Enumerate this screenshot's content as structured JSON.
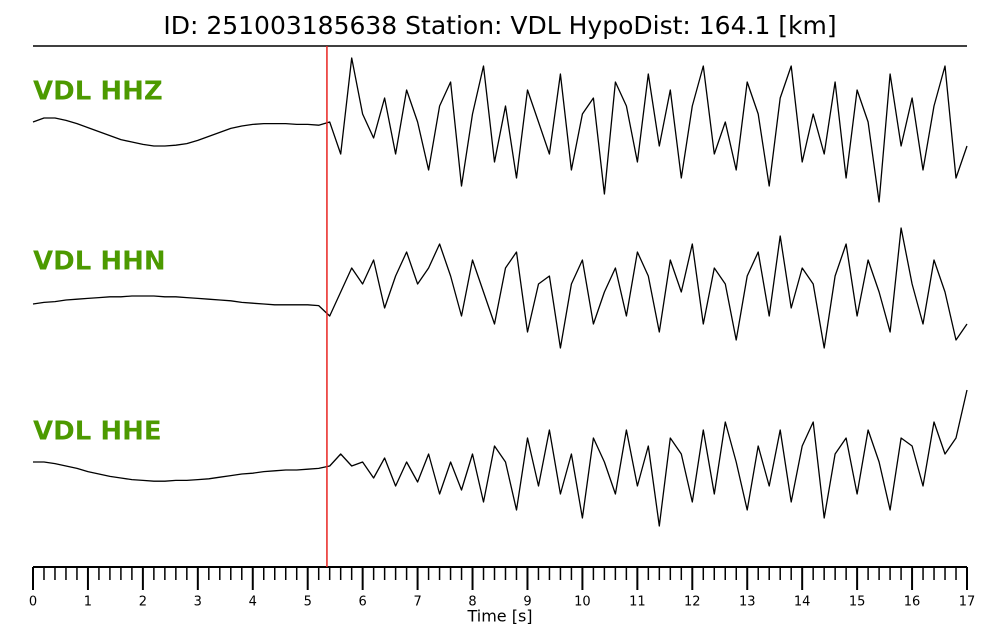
{
  "chart_data": {
    "type": "seismogram",
    "title": "ID: 251003185638   Station: VDL   HypoDist:   164.1 [km]",
    "xlabel": "Time [s]",
    "xlim": [
      0,
      17
    ],
    "xticks": [
      0,
      1,
      2,
      3,
      4,
      5,
      6,
      7,
      8,
      9,
      10,
      11,
      12,
      13,
      14,
      15,
      16,
      17
    ],
    "xminorticks": [
      0.2,
      0.4,
      0.6,
      0.8,
      1.2,
      1.4,
      1.6,
      1.8,
      2.2,
      2.4,
      2.6,
      2.8,
      3.2,
      3.4,
      3.6,
      3.8,
      4.2,
      4.4,
      4.6,
      4.8,
      5.2,
      5.4,
      5.6,
      5.8,
      6.2,
      6.4,
      6.6,
      6.8,
      7.2,
      7.4,
      7.6,
      7.8,
      8.2,
      8.4,
      8.6,
      8.8,
      9.2,
      9.4,
      9.6,
      9.8,
      10.2,
      10.4,
      10.6,
      10.8,
      11.2,
      11.4,
      11.6,
      11.8,
      12.2,
      12.4,
      12.6,
      12.8,
      13.2,
      13.4,
      13.6,
      13.8,
      14.2,
      14.4,
      14.6,
      14.8,
      15.2,
      15.4,
      15.6,
      15.8,
      16.2,
      16.4,
      16.6,
      16.8
    ],
    "ylim": [
      -1,
      1
    ],
    "pick": {
      "x": 5.35,
      "color": "#e8231f"
    },
    "label_color": "#4c9a00",
    "x": [
      0,
      0.2,
      0.4,
      0.6,
      0.8,
      1,
      1.2,
      1.4,
      1.6,
      1.8,
      2,
      2.2,
      2.4,
      2.6,
      2.8,
      3,
      3.2,
      3.4,
      3.6,
      3.8,
      4,
      4.2,
      4.4,
      4.6,
      4.8,
      5,
      5.2,
      5.4,
      5.6,
      5.8,
      6,
      6.2,
      6.4,
      6.6,
      6.8,
      7,
      7.2,
      7.4,
      7.6,
      7.8,
      8,
      8.2,
      8.4,
      8.6,
      8.8,
      9,
      9.2,
      9.4,
      9.6,
      9.8,
      10,
      10.2,
      10.4,
      10.6,
      10.8,
      11,
      11.2,
      11.4,
      11.6,
      11.8,
      12,
      12.2,
      12.4,
      12.6,
      12.8,
      13,
      13.2,
      13.4,
      13.6,
      13.8,
      14,
      14.2,
      14.4,
      14.6,
      14.8,
      15,
      15.2,
      15.4,
      15.6,
      15.8,
      16,
      16.2,
      16.4,
      16.6,
      16.8,
      17
    ],
    "series": [
      {
        "name": "VDL HHZ",
        "color": "#000000",
        "values": [
          0.1,
          0.15,
          0.15,
          0.12,
          0.08,
          0.03,
          -0.02,
          -0.07,
          -0.12,
          -0.15,
          -0.18,
          -0.2,
          -0.2,
          -0.19,
          -0.17,
          -0.13,
          -0.08,
          -0.03,
          0.02,
          0.05,
          0.07,
          0.08,
          0.08,
          0.08,
          0.07,
          0.07,
          0.06,
          0.1,
          -0.3,
          0.9,
          0.2,
          -0.1,
          0.4,
          -0.3,
          0.5,
          0.1,
          -0.5,
          0.3,
          0.6,
          -0.7,
          0.2,
          0.8,
          -0.4,
          0.3,
          -0.6,
          0.5,
          0.1,
          -0.3,
          0.7,
          -0.5,
          0.2,
          0.4,
          -0.8,
          0.6,
          0.3,
          -0.4,
          0.7,
          -0.2,
          0.5,
          -0.6,
          0.3,
          0.8,
          -0.3,
          0.1,
          -0.5,
          0.6,
          0.2,
          -0.7,
          0.4,
          0.8,
          -0.4,
          0.2,
          -0.3,
          0.6,
          -0.6,
          0.5,
          0.1,
          -0.9,
          0.7,
          -0.2,
          0.4,
          -0.5,
          0.3,
          0.8,
          -0.6,
          -0.2
        ]
      },
      {
        "name": "VDL HHN",
        "color": "#000000",
        "values": [
          -0.05,
          -0.03,
          -0.02,
          0,
          0.01,
          0.02,
          0.03,
          0.04,
          0.04,
          0.05,
          0.05,
          0.05,
          0.04,
          0.04,
          0.03,
          0.02,
          0.01,
          0,
          -0.01,
          -0.03,
          -0.04,
          -0.05,
          -0.06,
          -0.06,
          -0.06,
          -0.06,
          -0.07,
          -0.2,
          0.1,
          0.4,
          0.2,
          0.5,
          -0.1,
          0.3,
          0.6,
          0.2,
          0.4,
          0.7,
          0.3,
          -0.2,
          0.5,
          0.1,
          -0.3,
          0.4,
          0.6,
          -0.4,
          0.2,
          0.3,
          -0.6,
          0.2,
          0.5,
          -0.3,
          0.1,
          0.4,
          -0.2,
          0.6,
          0.3,
          -0.4,
          0.5,
          0.1,
          0.7,
          -0.3,
          0.4,
          0.2,
          -0.5,
          0.3,
          0.6,
          -0.2,
          0.8,
          -0.1,
          0.4,
          0.2,
          -0.6,
          0.3,
          0.7,
          -0.2,
          0.5,
          0.1,
          -0.4,
          0.9,
          0.2,
          -0.3,
          0.5,
          0.1,
          -0.5,
          -0.3
        ]
      },
      {
        "name": "VDL HHE",
        "color": "#000000",
        "values": [
          0.1,
          0.1,
          0.08,
          0.05,
          0.02,
          -0.02,
          -0.05,
          -0.08,
          -0.1,
          -0.12,
          -0.13,
          -0.14,
          -0.14,
          -0.13,
          -0.13,
          -0.12,
          -0.11,
          -0.09,
          -0.07,
          -0.05,
          -0.04,
          -0.02,
          -0.01,
          0,
          0,
          0.01,
          0.02,
          0.05,
          0.2,
          0.05,
          0.1,
          -0.1,
          0.15,
          -0.2,
          0.1,
          -0.15,
          0.2,
          -0.3,
          0.1,
          -0.25,
          0.2,
          -0.4,
          0.3,
          0.1,
          -0.5,
          0.4,
          -0.2,
          0.5,
          -0.3,
          0.2,
          -0.6,
          0.4,
          0.1,
          -0.3,
          0.5,
          -0.2,
          0.3,
          -0.7,
          0.4,
          0.2,
          -0.4,
          0.5,
          -0.3,
          0.6,
          0.1,
          -0.5,
          0.3,
          -0.2,
          0.5,
          -0.4,
          0.3,
          0.6,
          -0.6,
          0.2,
          0.4,
          -0.3,
          0.5,
          0.1,
          -0.5,
          0.4,
          0.3,
          -0.2,
          0.6,
          0.2,
          0.4,
          1.0
        ]
      }
    ]
  }
}
